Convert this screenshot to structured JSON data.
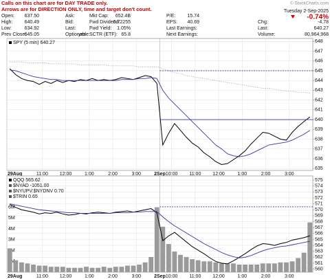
{
  "notice": [
    "Calls on this chart are for DAY TRADE only.",
    "Arrows are for DIRECTION ONLY, time and target don't count."
  ],
  "watermark": "© StockCharts.com",
  "quote": {
    "rows": [
      [
        {
          "label": "Open:",
          "value": "637.50"
        },
        {
          "label": "Ask:"
        },
        {
          "label": "Mkt Cap:",
          "value": "652.4B"
        },
        {
          "label": "P/E:",
          "value": "15.74"
        }
      ],
      [
        {
          "label": "High:",
          "value": "640.49"
        },
        {
          "label": "Bid:"
        },
        {
          "label": "Fwd Dividend:",
          "value": "6.72255"
        },
        {
          "label": "EPS:",
          "value": "40.69"
        }
      ],
      [
        {
          "label": "Low:",
          "value": "634.92"
        },
        {
          "label": "Last:"
        },
        {
          "label": "Fwd Yield:",
          "value": "1.05%"
        },
        {
          "label": "Last Earnings:"
        }
      ],
      [
        {
          "label": "Prev Close:",
          "value": "645.05"
        },
        {
          "label": "Optionable:",
          "value": "yes"
        },
        {
          "label": "SCTR (ETF):",
          "value": "65.8"
        },
        {
          "label": "Next Earnings:"
        }
      ]
    ],
    "date": "Tuesday 2-Sep-2025",
    "pct_change": "-0.74%",
    "right": [
      {
        "label": "Chg:",
        "value": "-4.78"
      },
      {
        "label": "Last:",
        "value": "640.27"
      },
      {
        "label": "Volume:",
        "value": "80,964,968"
      }
    ]
  },
  "chart_data": [
    {
      "type": "line",
      "y_side": "right",
      "categories": [
        "29Aug",
        null,
        null,
        null,
        null,
        null,
        "11:00",
        null,
        null,
        null,
        "12:00",
        null,
        null,
        null,
        "1:00",
        null,
        null,
        null,
        "2:00",
        null,
        null,
        null,
        "3:00",
        null,
        null,
        null,
        "2Sep",
        null,
        "10:00",
        null,
        null,
        null,
        "11:00",
        null,
        null,
        null,
        "12:00",
        null,
        null,
        null,
        "1:00",
        null,
        null,
        null,
        "2:00",
        null,
        null,
        null,
        "3:00",
        null,
        null,
        null
      ],
      "series": [
        {
          "name": "SPY (5 min) 640.27",
          "color": "#000000",
          "values": [
            645.2,
            644.6,
            644.2,
            644.0,
            643.9,
            643.6,
            643.9,
            643.7,
            644.0,
            643.8,
            644.0,
            643.9,
            644.1,
            644.0,
            644.2,
            644.0,
            644.1,
            644.0,
            644.1,
            644.3,
            644.2,
            644.1,
            644.3,
            644.5,
            644.4,
            643.7,
            637.4,
            638.6,
            639.6,
            638.9,
            638.2,
            637.6,
            637.2,
            636.6,
            636.2,
            635.7,
            635.4,
            635.5,
            635.9,
            636.3,
            636.8,
            637.5,
            638.1,
            638.7,
            638.6,
            638.3,
            638.0,
            637.9,
            638.7,
            639.3,
            639.8,
            640.27
          ]
        },
        {
          "color": "#3535a8",
          "values": [
            645.1,
            645.0,
            644.8,
            644.6,
            644.4,
            644.3,
            644.2,
            644.1,
            644.1,
            644.0,
            644.0,
            644.0,
            644.0,
            644.0,
            644.0,
            644.0,
            644.0,
            644.0,
            644.0,
            644.1,
            644.1,
            644.1,
            644.2,
            644.2,
            644.3,
            644.2,
            643.0,
            642.2,
            641.6,
            641.0,
            640.4,
            639.8,
            639.2,
            638.6,
            638.0,
            637.4,
            637.0,
            636.5,
            636.3,
            636.2,
            636.3,
            636.5,
            636.8,
            637.1,
            637.4,
            637.5,
            637.6,
            637.7,
            637.9,
            638.2,
            638.5,
            638.9
          ]
        },
        {
          "color": "#aaaaaa",
          "dash": true,
          "values": [
            645.9,
            645.9,
            645.9,
            645.8,
            645.8,
            645.8,
            645.8,
            645.7,
            645.7,
            645.7,
            645.7,
            645.7,
            645.6,
            645.6,
            645.6,
            645.6,
            645.6,
            645.5,
            645.5,
            645.5,
            645.5,
            645.5,
            645.4,
            645.4,
            645.4,
            645.4,
            645.2,
            645.0,
            644.8,
            644.7,
            644.5,
            644.4,
            644.3,
            644.2,
            644.1,
            644.0,
            643.9,
            643.8,
            643.7,
            643.6,
            643.5,
            643.4,
            643.3,
            643.2,
            643.2,
            643.1,
            643.0,
            642.9,
            642.9,
            642.8,
            642.8,
            642.7
          ]
        }
      ],
      "hlines": [
        {
          "value": 645,
          "color": "#3535a8",
          "dashed": true,
          "x": [
            26,
            51
          ]
        },
        {
          "value": 640,
          "color": "#3535a8",
          "dashed": false,
          "x": [
            26,
            51
          ]
        }
      ],
      "ylim": [
        634.8,
        648.3
      ],
      "yticks": [
        635,
        636,
        637,
        638,
        639,
        640,
        641,
        642,
        643,
        644,
        645,
        646,
        647,
        648
      ],
      "grid": true
    },
    {
      "type": "line",
      "y_side": "left",
      "categories": [
        "29Aug",
        null,
        null,
        null,
        null,
        null,
        "11:00",
        null,
        null,
        null,
        "12:00",
        null,
        null,
        null,
        "1:00",
        null,
        null,
        null,
        "2:00",
        null,
        null,
        null,
        "3:00",
        null,
        null,
        null,
        "2Sep",
        null,
        "10:00",
        null,
        null,
        null,
        "11:00",
        null,
        null,
        null,
        "12:00",
        null,
        null,
        null,
        "1:00",
        null,
        null,
        null,
        "2:00",
        null,
        null,
        null,
        "3:00",
        null,
        null,
        null
      ],
      "series": [
        {
          "type": "bar",
          "color": "#9a9a9a",
          "values": [
            2.2,
            1.1,
            0.9,
            0.8,
            0.7,
            0.6,
            0.6,
            0.5,
            0.5,
            0.5,
            0.4,
            0.4,
            0.4,
            0.5,
            0.4,
            0.4,
            0.5,
            0.4,
            0.5,
            0.5,
            0.6,
            0.6,
            0.7,
            0.9,
            1.4,
            6.0,
            4.2,
            2.6,
            1.9,
            1.6,
            1.4,
            1.2,
            1.1,
            1.0,
            1.0,
            0.9,
            0.8,
            0.8,
            0.8,
            0.7,
            0.7,
            0.7,
            0.7,
            0.8,
            0.8,
            0.8,
            0.9,
            0.9,
            1.0,
            1.3,
            1.8,
            4.6
          ]
        },
        {
          "name": "QQQ 565.62",
          "color": "#000000",
          "axis": "y2",
          "values": [
            570.9,
            570.4,
            570.0,
            569.8,
            569.6,
            569.3,
            569.5,
            569.4,
            569.6,
            569.3,
            569.1,
            569.2,
            569.4,
            569.3,
            569.5,
            569.6,
            569.5,
            569.4,
            569.6,
            569.7,
            569.8,
            569.6,
            569.8,
            570.0,
            570.2,
            569.5,
            564.8,
            565.6,
            566.2,
            565.4,
            564.6,
            563.8,
            563.2,
            562.6,
            561.9,
            561.3,
            561.0,
            560.9,
            561.4,
            562.0,
            562.6,
            563.3,
            563.9,
            564.3,
            564.2,
            564.0,
            564.3,
            564.5,
            564.9,
            565.1,
            565.3,
            565.62
          ]
        },
        {
          "color": "#3535a8",
          "axis": "y2",
          "values": [
            571.0,
            570.8,
            570.6,
            570.4,
            570.2,
            570.0,
            569.9,
            569.8,
            569.7,
            569.6,
            569.5,
            569.5,
            569.4,
            569.4,
            569.4,
            569.4,
            569.4,
            569.4,
            569.5,
            569.5,
            569.5,
            569.6,
            569.6,
            569.7,
            569.7,
            569.7,
            568.8,
            568.0,
            567.3,
            566.7,
            566.1,
            565.5,
            564.9,
            564.3,
            563.8,
            563.3,
            562.8,
            562.4,
            562.1,
            561.9,
            562.0,
            562.3,
            562.7,
            563.1,
            563.4,
            563.6,
            563.8,
            563.9,
            564.1,
            564.3,
            564.5,
            564.7
          ]
        }
      ],
      "annotations": [
        "$NYAD -1051.00",
        "$NYUPV:$NYDNV 0.70",
        "$TRIN 0.65"
      ],
      "hlines": [
        {
          "value": 570.5,
          "color": "#3535a8",
          "dashed": true,
          "axis": "y2",
          "x": [
            26,
            51
          ]
        }
      ],
      "ylim": [
        0,
        8.9
      ],
      "yticks": [
        {
          "value": 1,
          "label": "1M"
        },
        {
          "value": 2,
          "label": "2M"
        },
        {
          "value": 3,
          "label": "3M"
        },
        {
          "value": 4,
          "label": "4M"
        },
        {
          "value": 5,
          "label": "5M"
        },
        {
          "value": 6,
          "label": "6M"
        }
      ],
      "y2lim": [
        559.5,
        575.7
      ],
      "y2ticks": [
        560,
        561,
        562,
        563,
        564,
        565,
        566,
        567,
        568,
        569,
        570,
        571,
        572,
        573,
        574,
        575
      ],
      "grid": true
    }
  ]
}
